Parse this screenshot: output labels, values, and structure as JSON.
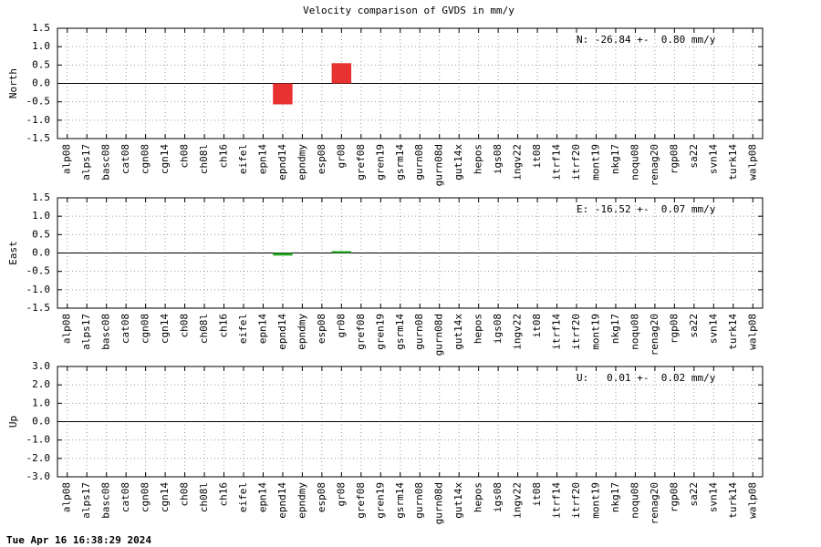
{
  "title": "Velocity comparison of GVDS in mm/y",
  "timestamp": "Tue Apr 16 16:38:29 2024",
  "chart_data": [
    {
      "type": "bar",
      "ylabel": "North",
      "annotation": "N: -26.84 +-  0.80 mm/y",
      "color": "#e83232",
      "grid": true,
      "categories": [
        "alp08",
        "alps17",
        "basc08",
        "cat08",
        "cgn08",
        "cgn14",
        "ch08",
        "ch08l",
        "ch16",
        "eifel",
        "epn14",
        "epnd14",
        "epndmy",
        "esp08",
        "gr08",
        "gref08",
        "gren19",
        "gsrm14",
        "gurn08",
        "gurn08d",
        "gut14x",
        "hepos",
        "igs08",
        "ingv22",
        "it08",
        "itrf14",
        "itrf20",
        "mont19",
        "nkg17",
        "noqu08",
        "renag20",
        "rgp08",
        "sa22",
        "svn14",
        "turk14",
        "walp08"
      ],
      "values": [
        null,
        null,
        null,
        null,
        null,
        null,
        null,
        null,
        null,
        null,
        null,
        -0.57,
        null,
        null,
        0.55,
        null,
        null,
        null,
        null,
        null,
        null,
        null,
        null,
        null,
        null,
        null,
        null,
        null,
        null,
        null,
        null,
        null,
        null,
        null,
        null,
        null
      ],
      "ylim": [
        -1.5,
        1.5
      ],
      "yticks": [
        1.5,
        {
          "value": 1.0,
          "label": "1.0"
        },
        0.5,
        {
          "value": 0.0,
          "label": "0.0"
        },
        -0.5,
        {
          "value": -1.0,
          "label": "-1.0"
        },
        -1.5
      ]
    },
    {
      "type": "bar",
      "ylabel": "East",
      "annotation": "E: -16.52 +-  0.07 mm/y",
      "color": "#22aa22",
      "grid": true,
      "categories": [
        "alp08",
        "alps17",
        "basc08",
        "cat08",
        "cgn08",
        "cgn14",
        "ch08",
        "ch08l",
        "ch16",
        "eifel",
        "epn14",
        "epnd14",
        "epndmy",
        "esp08",
        "gr08",
        "gref08",
        "gren19",
        "gsrm14",
        "gurn08",
        "gurn08d",
        "gut14x",
        "hepos",
        "igs08",
        "ingv22",
        "it08",
        "itrf14",
        "itrf20",
        "mont19",
        "nkg17",
        "noqu08",
        "renag20",
        "rgp08",
        "sa22",
        "svn14",
        "turk14",
        "walp08"
      ],
      "values": [
        null,
        null,
        null,
        null,
        null,
        null,
        null,
        null,
        null,
        null,
        null,
        -0.07,
        null,
        null,
        0.05,
        null,
        null,
        null,
        null,
        null,
        null,
        null,
        null,
        null,
        null,
        null,
        null,
        null,
        null,
        null,
        null,
        null,
        null,
        null,
        null,
        null
      ],
      "ylim": [
        -1.5,
        1.5
      ],
      "yticks": [
        1.5,
        {
          "value": 1.0,
          "label": "1.0"
        },
        0.5,
        {
          "value": 0.0,
          "label": "0.0"
        },
        -0.5,
        {
          "value": -1.0,
          "label": "-1.0"
        },
        -1.5
      ]
    },
    {
      "type": "bar",
      "ylabel": "Up",
      "annotation": "U:   0.01 +-  0.02 mm/y",
      "color": "#3232e8",
      "grid": true,
      "categories": [
        "alp08",
        "alps17",
        "basc08",
        "cat08",
        "cgn08",
        "cgn14",
        "ch08",
        "ch08l",
        "ch16",
        "eifel",
        "epn14",
        "epnd14",
        "epndmy",
        "esp08",
        "gr08",
        "gref08",
        "gren19",
        "gsrm14",
        "gurn08",
        "gurn08d",
        "gut14x",
        "hepos",
        "igs08",
        "ingv22",
        "it08",
        "itrf14",
        "itrf20",
        "mont19",
        "nkg17",
        "noqu08",
        "renag20",
        "rgp08",
        "sa22",
        "svn14",
        "turk14",
        "walp08"
      ],
      "values": [
        null,
        null,
        null,
        null,
        null,
        null,
        null,
        null,
        null,
        null,
        null,
        null,
        null,
        null,
        null,
        null,
        null,
        null,
        null,
        null,
        null,
        null,
        null,
        null,
        null,
        null,
        null,
        null,
        null,
        null,
        null,
        null,
        null,
        null,
        null,
        null
      ],
      "ylim": [
        -3.0,
        3.0
      ],
      "yticks": [
        {
          "value": 3.0,
          "label": "3.0"
        },
        {
          "value": 2.0,
          "label": "2.0"
        },
        {
          "value": 1.0,
          "label": "1.0"
        },
        {
          "value": 0.0,
          "label": "0.0"
        },
        {
          "value": -1.0,
          "label": "-1.0"
        },
        {
          "value": -2.0,
          "label": "-2.0"
        },
        {
          "value": -3.0,
          "label": "-3.0"
        }
      ]
    }
  ]
}
